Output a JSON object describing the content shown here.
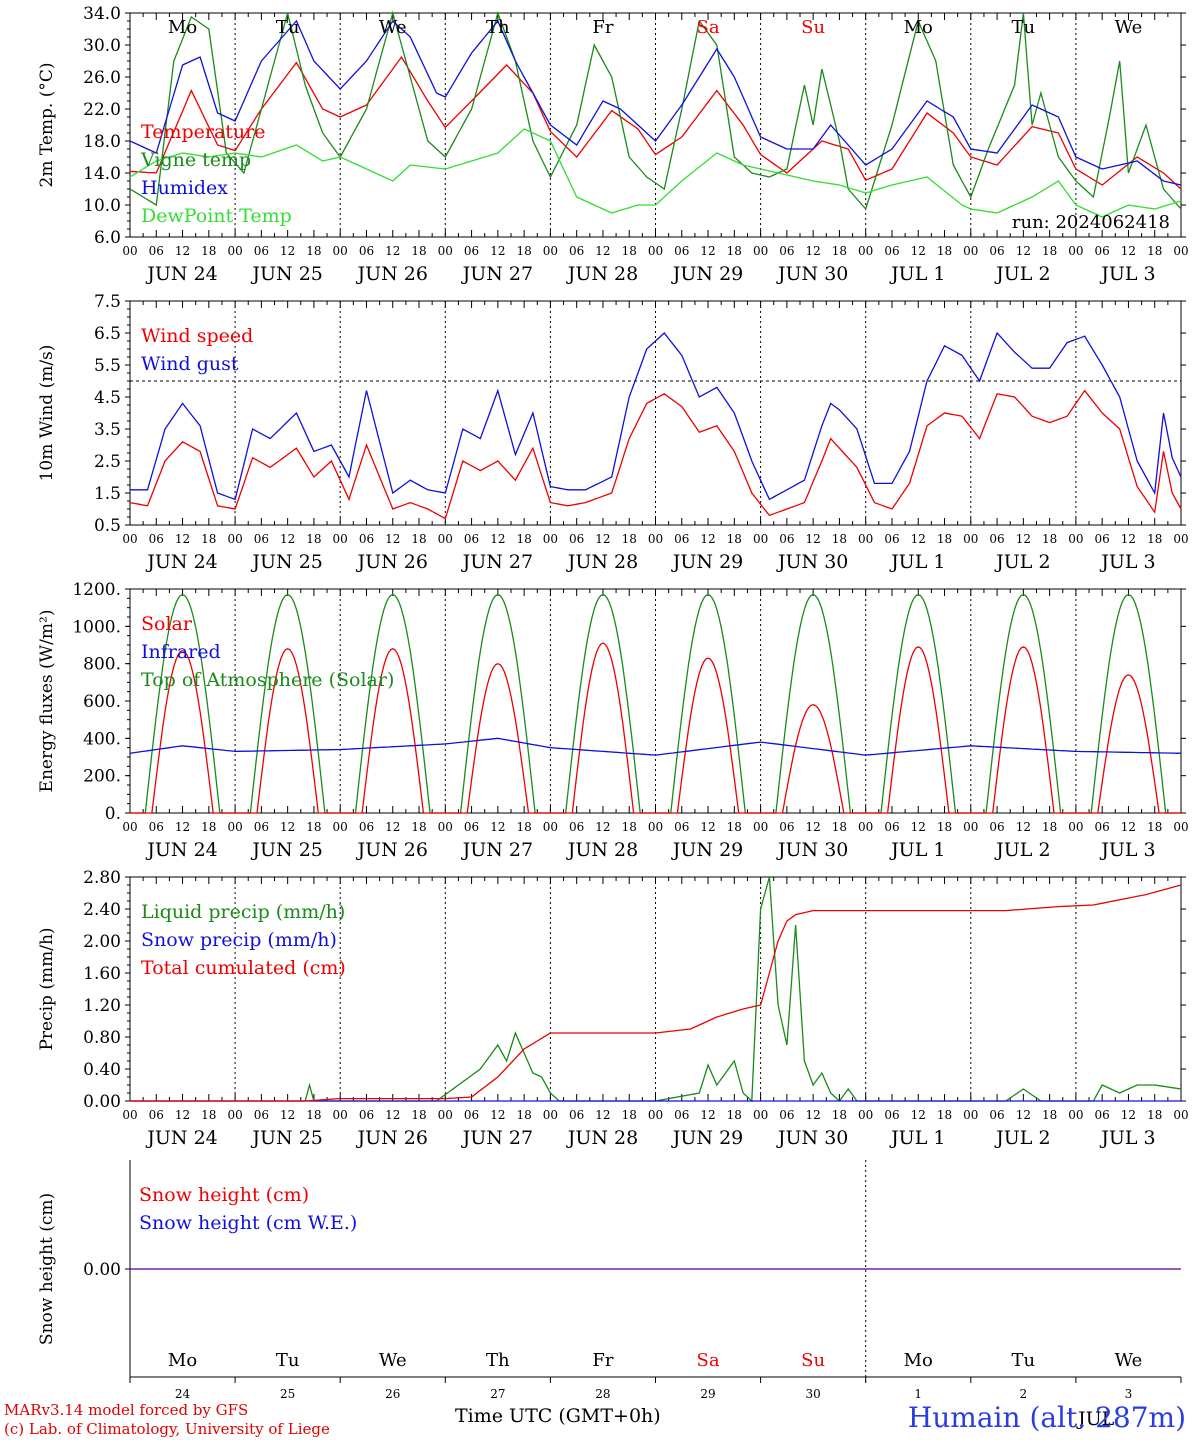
{
  "colors": {
    "red": "#ee0000",
    "green": "#1a8a1a",
    "blue": "#1010dd",
    "lightgreen": "#33dd33",
    "axis": "#000000"
  },
  "days": [
    "JUN 24",
    "JUN 25",
    "JUN 26",
    "JUN 27",
    "JUN 28",
    "JUN 29",
    "JUN 30",
    "JUL  1",
    "JUL  2",
    "JUL  3"
  ],
  "weekdays": [
    {
      "label": "Mo",
      "weekend": false
    },
    {
      "label": "Tu",
      "weekend": false
    },
    {
      "label": "We",
      "weekend": false
    },
    {
      "label": "Th",
      "weekend": false
    },
    {
      "label": "Fr",
      "weekend": false
    },
    {
      "label": "Sa",
      "weekend": true
    },
    {
      "label": "Su",
      "weekend": true
    },
    {
      "label": "Mo",
      "weekend": false
    },
    {
      "label": "Tu",
      "weekend": false
    },
    {
      "label": "We",
      "weekend": false
    }
  ],
  "hour_ticks": [
    "00",
    "06",
    "12",
    "18"
  ],
  "footer": {
    "model": "MARv3.14 model forced by GFS",
    "credit": "(c) Lab. of Climatology, University of Liege",
    "station": "Humain (alt. 287m)",
    "xaxis_title": "Time UTC (GMT+0h)"
  },
  "chart_data": [
    {
      "type": "line",
      "ylabel": "2m Temp. (°C)",
      "ylim": [
        6,
        34
      ],
      "yticks": [
        "6.0",
        "10.0",
        "14.0",
        "18.0",
        "22.0",
        "26.0",
        "30.0",
        "34.0"
      ],
      "annotation": "run: 2024062418",
      "x_unit": "hours since JUN 24 00 UTC",
      "series": [
        {
          "name": "Temperature",
          "color": "#ee0000",
          "x": [
            0,
            6,
            14,
            20,
            24,
            30,
            38,
            44,
            48,
            54,
            62,
            68,
            72,
            78,
            86,
            92,
            96,
            102,
            110,
            116,
            120,
            126,
            134,
            140,
            144,
            150,
            158,
            164,
            168,
            174,
            182,
            188,
            192,
            198,
            206,
            212,
            216,
            222,
            230,
            236,
            240
          ],
          "values": [
            14.2,
            14,
            24.3,
            17.5,
            16.8,
            22,
            27.8,
            22,
            21,
            22.5,
            28.5,
            23,
            19.7,
            23,
            27.5,
            24,
            19.2,
            16,
            21.8,
            19.5,
            16.3,
            18.5,
            24.3,
            20,
            16.3,
            14,
            18,
            17,
            13.1,
            14.5,
            21.5,
            19,
            16,
            15,
            19.8,
            19,
            14.5,
            12.5,
            16,
            14,
            12
          ]
        },
        {
          "name": "Vigne temp",
          "color": "#1a8a1a",
          "x": [
            0,
            6,
            10,
            14,
            18,
            22,
            26,
            30,
            36,
            40,
            44,
            48,
            54,
            60,
            64,
            68,
            72,
            78,
            84,
            88,
            92,
            96,
            102,
            106,
            110,
            114,
            118,
            122,
            126,
            130,
            134,
            138,
            142,
            146,
            150,
            154,
            156,
            158,
            162,
            164,
            168,
            174,
            180,
            184,
            188,
            192,
            196,
            202,
            204,
            206,
            208,
            212,
            216,
            220,
            224,
            226,
            228,
            232,
            236,
            240
          ],
          "values": [
            12,
            10,
            28,
            33.5,
            32,
            16.5,
            14,
            22,
            34,
            25,
            19,
            16,
            22,
            34,
            26,
            18,
            16,
            22,
            34,
            28,
            18,
            13.5,
            20,
            30,
            26,
            16,
            13.5,
            12,
            22,
            33,
            30,
            16,
            14,
            13.5,
            14.5,
            25,
            20,
            27,
            18,
            12,
            9.5,
            20,
            33,
            28,
            15,
            11,
            17,
            25,
            34,
            20,
            24,
            16,
            13,
            11,
            22,
            28,
            14,
            20,
            12,
            9.5
          ]
        },
        {
          "name": "Humidex",
          "color": "#1010dd",
          "x": [
            0,
            6,
            12,
            16,
            20,
            24,
            30,
            38,
            42,
            48,
            54,
            60,
            64,
            70,
            72,
            78,
            84,
            88,
            96,
            102,
            108,
            112,
            120,
            126,
            134,
            138,
            144,
            150,
            156,
            160,
            168,
            174,
            182,
            188,
            192,
            198,
            206,
            212,
            216,
            222,
            230,
            236,
            240
          ],
          "values": [
            18,
            16.5,
            27.5,
            28.5,
            21.5,
            20.5,
            28,
            33,
            28,
            24.5,
            28,
            33,
            31,
            24,
            23.5,
            29,
            33,
            28,
            20,
            17.5,
            23,
            22,
            18,
            22.5,
            29.5,
            26,
            18.5,
            17,
            17,
            20,
            15,
            17,
            23,
            21,
            17,
            16.5,
            22.5,
            21,
            16,
            14.5,
            15.5,
            13,
            12.5
          ]
        },
        {
          "name": "DewPoint Temp",
          "color": "#33dd33",
          "x": [
            0,
            6,
            12,
            18,
            24,
            30,
            38,
            44,
            48,
            60,
            64,
            72,
            84,
            90,
            96,
            102,
            110,
            116,
            120,
            126,
            134,
            140,
            144,
            156,
            162,
            168,
            174,
            182,
            190,
            192,
            198,
            206,
            212,
            216,
            222,
            228,
            234,
            240
          ],
          "values": [
            13.5,
            15.5,
            16.5,
            16,
            16.5,
            16,
            17.5,
            15.5,
            16,
            13,
            15,
            14.5,
            16.5,
            19.5,
            18,
            11,
            9,
            10,
            10,
            13,
            16.5,
            15,
            14.5,
            13,
            12.5,
            11.5,
            12.5,
            13.5,
            10,
            9.5,
            9,
            11,
            13,
            10,
            8.5,
            10,
            9.5,
            10.5
          ]
        }
      ]
    },
    {
      "type": "line",
      "ylabel": "10m Wind (m/s)",
      "ylim": [
        0.5,
        7.5
      ],
      "yticks": [
        "0.5",
        "1.5",
        "2.5",
        "3.5",
        "4.5",
        "5.5",
        "6.5",
        "7.5"
      ],
      "reference_line": 5,
      "x_unit": "hours since JUN 24 00 UTC",
      "series": [
        {
          "name": "Wind speed",
          "color": "#ee0000",
          "x": [
            0,
            4,
            8,
            12,
            16,
            20,
            24,
            28,
            32,
            38,
            42,
            46,
            50,
            54,
            60,
            64,
            68,
            72,
            76,
            80,
            84,
            88,
            92,
            96,
            100,
            104,
            110,
            114,
            118,
            122,
            126,
            130,
            134,
            138,
            142,
            146,
            150,
            154,
            158,
            160,
            162,
            166,
            170,
            174,
            178,
            182,
            186,
            190,
            194,
            198,
            202,
            206,
            210,
            214,
            218,
            222,
            226,
            230,
            234,
            236,
            238,
            240
          ],
          "values": [
            1.2,
            1.1,
            2.5,
            3.1,
            2.8,
            1.1,
            1.0,
            2.6,
            2.3,
            2.9,
            2.0,
            2.5,
            1.3,
            3.0,
            1.0,
            1.2,
            1.0,
            0.7,
            2.5,
            2.2,
            2.5,
            1.9,
            2.9,
            1.2,
            1.1,
            1.2,
            1.5,
            3.2,
            4.3,
            4.6,
            4.2,
            3.4,
            3.6,
            2.8,
            1.5,
            0.8,
            1.0,
            1.2,
            2.5,
            3.2,
            2.9,
            2.3,
            1.2,
            1.0,
            1.8,
            3.6,
            4.0,
            3.9,
            3.2,
            4.6,
            4.5,
            3.9,
            3.7,
            3.9,
            4.7,
            4.0,
            3.5,
            1.7,
            0.9,
            2.8,
            1.5,
            1.0
          ]
        },
        {
          "name": "Wind gust",
          "color": "#1010dd",
          "x": [
            0,
            4,
            8,
            12,
            16,
            20,
            24,
            28,
            32,
            38,
            42,
            46,
            50,
            54,
            60,
            64,
            68,
            72,
            76,
            80,
            84,
            88,
            92,
            96,
            100,
            104,
            110,
            114,
            118,
            122,
            126,
            130,
            134,
            138,
            142,
            146,
            150,
            154,
            158,
            160,
            162,
            166,
            170,
            174,
            178,
            182,
            186,
            190,
            194,
            198,
            202,
            206,
            210,
            214,
            218,
            222,
            226,
            230,
            234,
            236,
            238,
            240
          ],
          "values": [
            1.6,
            1.6,
            3.5,
            4.3,
            3.6,
            1.5,
            1.3,
            3.5,
            3.2,
            4.0,
            2.8,
            3.0,
            2.0,
            4.7,
            1.5,
            1.9,
            1.6,
            1.5,
            3.5,
            3.2,
            4.7,
            2.7,
            4.0,
            1.7,
            1.6,
            1.6,
            2.0,
            4.5,
            6.0,
            6.5,
            5.8,
            4.5,
            4.8,
            4.0,
            2.5,
            1.3,
            1.6,
            1.9,
            3.6,
            4.3,
            4.1,
            3.5,
            1.8,
            1.8,
            2.8,
            5.0,
            6.1,
            5.8,
            5.0,
            6.5,
            5.9,
            5.4,
            5.4,
            6.2,
            6.4,
            5.5,
            4.5,
            2.5,
            1.5,
            4.0,
            2.6,
            2.0
          ]
        }
      ]
    },
    {
      "type": "line",
      "ylabel": "Energy fluxes (W/m²)",
      "ylim": [
        0,
        1200
      ],
      "yticks": [
        "0.",
        "200.",
        "400.",
        "600.",
        "800.",
        "1000.",
        "1200."
      ],
      "x_unit": "hours since JUN 24 00 UTC",
      "series": [
        {
          "name": "Solar",
          "color": "#ee0000",
          "daily_peaks": [
            870,
            880,
            880,
            800,
            910,
            830,
            580,
            890,
            890,
            740
          ]
        },
        {
          "name": "Infrared",
          "color": "#1010dd",
          "x": [
            0,
            12,
            24,
            48,
            72,
            84,
            96,
            120,
            144,
            168,
            192,
            216,
            240
          ],
          "values": [
            320,
            360,
            330,
            340,
            370,
            400,
            350,
            310,
            380,
            310,
            360,
            330,
            320
          ]
        },
        {
          "name": "Top of Atmosphere (Solar)",
          "color": "#1a8a1a",
          "daily_peaks": [
            1170,
            1170,
            1170,
            1170,
            1170,
            1170,
            1170,
            1170,
            1170,
            1170
          ]
        }
      ]
    },
    {
      "type": "line",
      "ylabel": "Precip (mm/h)",
      "ylim": [
        0,
        2.8
      ],
      "yticks": [
        "0.00",
        "0.40",
        "0.80",
        "1.20",
        "1.60",
        "2.00",
        "2.40",
        "2.80"
      ],
      "x_unit": "hours since JUN 24 00 UTC",
      "series": [
        {
          "name": "Liquid precip (mm/h)",
          "color": "#1a8a1a",
          "x": [
            0,
            40,
            41,
            42,
            70,
            80,
            84,
            86,
            88,
            90,
            92,
            94,
            96,
            98,
            120,
            130,
            132,
            134,
            136,
            138,
            140,
            142,
            144,
            146,
            148,
            150,
            152,
            154,
            156,
            158,
            160,
            162,
            164,
            166,
            168,
            200,
            204,
            208,
            220,
            222,
            226,
            230,
            234,
            240
          ],
          "values": [
            0,
            0,
            0.2,
            0,
            0,
            0.4,
            0.7,
            0.5,
            0.85,
            0.6,
            0.35,
            0.3,
            0.1,
            0,
            0,
            0.1,
            0.45,
            0.2,
            0.35,
            0.5,
            0.1,
            0.0,
            2.4,
            2.8,
            1.2,
            0.7,
            2.2,
            0.5,
            0.2,
            0.35,
            0.1,
            0,
            0.15,
            0,
            0,
            0,
            0.15,
            0,
            0,
            0.2,
            0.1,
            0.2,
            0.2,
            0.15
          ]
        },
        {
          "name": "Snow precip (mm/h)",
          "color": "#1010dd",
          "x": [
            0,
            240
          ],
          "values": [
            0,
            0
          ]
        },
        {
          "name": "Total cumulated (cm)",
          "color": "#ee0000",
          "x": [
            0,
            40,
            48,
            72,
            78,
            84,
            90,
            96,
            120,
            128,
            134,
            140,
            144,
            146,
            148,
            150,
            152,
            156,
            168,
            192,
            200,
            212,
            220,
            232,
            240
          ],
          "values": [
            0,
            0,
            0.03,
            0.03,
            0.05,
            0.3,
            0.65,
            0.85,
            0.85,
            0.9,
            1.05,
            1.15,
            1.2,
            1.6,
            2.0,
            2.25,
            2.33,
            2.38,
            2.38,
            2.38,
            2.38,
            2.43,
            2.45,
            2.58,
            2.7
          ]
        }
      ]
    },
    {
      "type": "line",
      "ylabel": "Snow height (cm)",
      "yticks": [
        "0.00"
      ],
      "x_unit": "hours since JUN 24 00 UTC",
      "series": [
        {
          "name": "Snow height (cm)",
          "color": "#ee0000",
          "x": [
            0,
            240
          ],
          "values": [
            0,
            0
          ]
        },
        {
          "name": "Snow height (cm W.E.)",
          "color": "#1010dd",
          "x": [
            0,
            240
          ],
          "values": [
            0,
            0
          ]
        }
      ],
      "bottom_weekdays": [
        "Mo",
        "Tu",
        "We",
        "Th",
        "Fr",
        "Sa",
        "Su",
        "Mo",
        "Tu",
        "We"
      ],
      "bottom_days": [
        "24",
        "25",
        "26",
        "27",
        "28",
        "29",
        "30",
        "1",
        "2",
        "3"
      ],
      "bottom_month": "JUL"
    }
  ]
}
